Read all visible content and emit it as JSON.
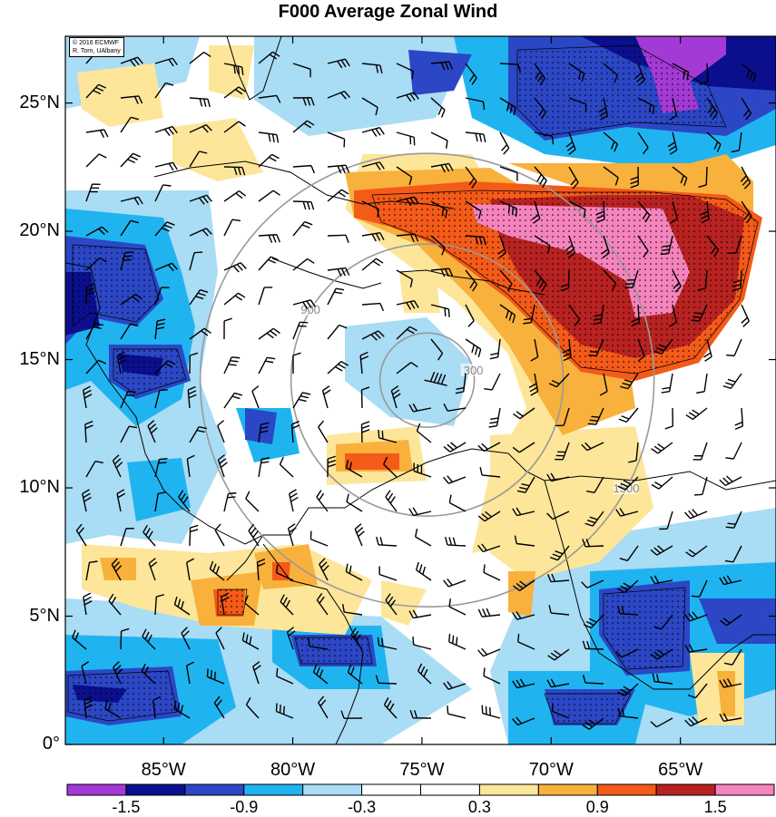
{
  "title": "F000 Average Zonal Wind",
  "credit": {
    "line1": "© 2016 ECMWF",
    "line2": "R. Torn, UAlbany"
  },
  "map": {
    "lon_range": [
      -88.8,
      -61.3
    ],
    "lat_range": [
      0,
      27.6
    ],
    "lat_ticks": [
      {
        "value": 0,
        "label": "0°"
      },
      {
        "value": 5,
        "label": "5°N"
      },
      {
        "value": 10,
        "label": "10°N"
      },
      {
        "value": 15,
        "label": "15°N"
      },
      {
        "value": 20,
        "label": "20°N"
      },
      {
        "value": 25,
        "label": "25°N"
      }
    ],
    "lon_ticks": [
      {
        "value": -85,
        "label": "85°W"
      },
      {
        "value": -80,
        "label": "80°W"
      },
      {
        "value": -75,
        "label": "75°W"
      },
      {
        "value": -70,
        "label": "70°W"
      },
      {
        "value": -65,
        "label": "65°W"
      }
    ],
    "storm_center": {
      "lon": -74.8,
      "lat": 14.2
    },
    "range_rings": [
      {
        "label": "300"
      },
      {
        "label": "900"
      },
      {
        "label": "1500"
      }
    ]
  },
  "colorbar": {
    "colors": [
      "#a43ad6",
      "#0b0f8e",
      "#2b47c6",
      "#1fb4f0",
      "#a9dcf5",
      "#ffffff",
      "#ffffff",
      "#fde69a",
      "#f8b13c",
      "#f45a18",
      "#b82220",
      "#f584bd"
    ],
    "labels": [
      "-1.5",
      "-0.9",
      "-0.3",
      "0.3",
      "0.9",
      "1.5"
    ],
    "label_index": [
      1,
      3,
      5,
      7,
      9,
      11
    ]
  }
}
